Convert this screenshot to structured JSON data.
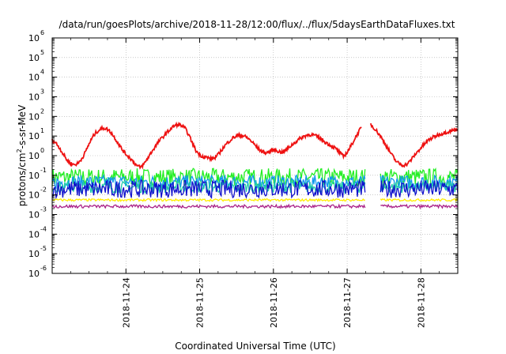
{
  "chart_data": {
    "type": "line",
    "title": "/data/run/goesPlots/archive/2018-11-28/12:00/flux/../flux/5daysEarthDataFluxes.txt",
    "xlabel": "Coordinated Universal Time (UTC)",
    "ylabel_base": "protons/cm",
    "ylabel_sup": "2",
    "ylabel_rest": "-s-sr-MeV",
    "yscale": "log",
    "ylim": [
      1e-06,
      1000000
    ],
    "y_ticks": [
      {
        "base": "10",
        "exp": "6"
      },
      {
        "base": "10",
        "exp": "5"
      },
      {
        "base": "10",
        "exp": "4"
      },
      {
        "base": "10",
        "exp": "3"
      },
      {
        "base": "10",
        "exp": "2"
      },
      {
        "base": "10",
        "exp": "1"
      },
      {
        "base": "10",
        "exp": "0"
      },
      {
        "base": "10",
        "exp": "-1"
      },
      {
        "base": "10",
        "exp": "-2"
      },
      {
        "base": "10",
        "exp": "-3"
      },
      {
        "base": "10",
        "exp": "-4"
      },
      {
        "base": "10",
        "exp": "-5"
      },
      {
        "base": "10",
        "exp": "-6"
      }
    ],
    "xlim": [
      "2018-11-23 00:00",
      "2018-11-28 12:00"
    ],
    "x_tick_labels": [
      "2018-11-24",
      "2018-11-25",
      "2018-11-26",
      "2018-11-27",
      "2018-11-28"
    ],
    "grid": true,
    "series": [
      {
        "color": "#ee1111",
        "points": [
          [
            0.0,
            6.0
          ],
          [
            0.05,
            4.5
          ],
          [
            0.1,
            2.5
          ],
          [
            0.15,
            1.2
          ],
          [
            0.2,
            0.6
          ],
          [
            0.25,
            0.4
          ],
          [
            0.3,
            0.35
          ],
          [
            0.35,
            0.4
          ],
          [
            0.4,
            0.7
          ],
          [
            0.45,
            1.5
          ],
          [
            0.5,
            4.0
          ],
          [
            0.55,
            9.0
          ],
          [
            0.6,
            16.0
          ],
          [
            0.65,
            22.0
          ],
          [
            0.7,
            26.0
          ],
          [
            0.75,
            22.0
          ],
          [
            0.8,
            15.0
          ],
          [
            0.85,
            8.0
          ],
          [
            0.9,
            4.0
          ],
          [
            0.95,
            2.0
          ],
          [
            1.0,
            1.2
          ],
          [
            1.05,
            0.8
          ],
          [
            1.1,
            0.5
          ],
          [
            1.15,
            0.3
          ],
          [
            1.2,
            0.25
          ],
          [
            1.25,
            0.4
          ],
          [
            1.3,
            0.8
          ],
          [
            1.35,
            1.6
          ],
          [
            1.4,
            3.0
          ],
          [
            1.45,
            5.5
          ],
          [
            1.5,
            9.0
          ],
          [
            1.55,
            14.0
          ],
          [
            1.6,
            22.0
          ],
          [
            1.65,
            32.0
          ],
          [
            1.7,
            38.0
          ],
          [
            1.75,
            35.0
          ],
          [
            1.8,
            25.0
          ],
          [
            1.85,
            12.0
          ],
          [
            1.9,
            4.5
          ],
          [
            1.95,
            1.8
          ],
          [
            2.0,
            1.1
          ],
          [
            2.05,
            0.9
          ],
          [
            2.1,
            0.8
          ],
          [
            2.15,
            0.7
          ],
          [
            2.2,
            0.75
          ],
          [
            2.25,
            1.1
          ],
          [
            2.3,
            2.0
          ],
          [
            2.35,
            3.5
          ],
          [
            2.4,
            5.5
          ],
          [
            2.45,
            8.0
          ],
          [
            2.5,
            10.0
          ],
          [
            2.55,
            11.0
          ],
          [
            2.6,
            10.0
          ],
          [
            2.65,
            8.0
          ],
          [
            2.7,
            5.5
          ],
          [
            2.75,
            3.5
          ],
          [
            2.8,
            2.2
          ],
          [
            2.85,
            1.6
          ],
          [
            2.9,
            1.4
          ],
          [
            2.95,
            1.6
          ],
          [
            3.0,
            2.0
          ],
          [
            3.05,
            1.8
          ],
          [
            3.1,
            1.5
          ],
          [
            3.15,
            1.7
          ],
          [
            3.2,
            2.4
          ],
          [
            3.25,
            3.5
          ],
          [
            3.3,
            5.0
          ],
          [
            3.35,
            7.0
          ],
          [
            3.4,
            9.0
          ],
          [
            3.45,
            11.0
          ],
          [
            3.5,
            12.0
          ],
          [
            3.55,
            11.0
          ],
          [
            3.6,
            9.0
          ],
          [
            3.65,
            7.0
          ],
          [
            3.7,
            5.0
          ],
          [
            3.75,
            3.8
          ],
          [
            3.8,
            3.0
          ],
          [
            3.85,
            2.2
          ],
          [
            3.9,
            1.4
          ],
          [
            3.95,
            0.9
          ],
          [
            4.0,
            1.5
          ],
          [
            4.05,
            3.0
          ],
          [
            4.1,
            7.0
          ],
          [
            4.15,
            15.0
          ],
          [
            4.2,
            30.0
          ],
          [
            4.22,
            null
          ],
          [
            4.3,
            null
          ],
          [
            4.32,
            40.0
          ],
          [
            4.35,
            30.0
          ],
          [
            4.4,
            18.0
          ],
          [
            4.45,
            10.0
          ],
          [
            4.5,
            5.0
          ],
          [
            4.55,
            2.4
          ],
          [
            4.6,
            1.2
          ],
          [
            4.65,
            0.6
          ],
          [
            4.7,
            0.4
          ],
          [
            4.75,
            0.33
          ],
          [
            4.8,
            0.35
          ],
          [
            4.85,
            0.5
          ],
          [
            4.9,
            0.9
          ],
          [
            4.95,
            1.5
          ],
          [
            5.0,
            2.5
          ],
          [
            5.05,
            4.0
          ],
          [
            5.1,
            6.0
          ],
          [
            5.15,
            8.0
          ],
          [
            5.2,
            10.0
          ],
          [
            5.25,
            12.0
          ],
          [
            5.3,
            14.0
          ],
          [
            5.35,
            16.0
          ],
          [
            5.4,
            18.0
          ],
          [
            5.45,
            20.0
          ],
          [
            5.5,
            22.0
          ]
        ]
      },
      {
        "color": "#22ee22",
        "level": 0.08,
        "spread": 0.45,
        "gap": [
          4.25,
          4.45
        ]
      },
      {
        "color": "#1199ee",
        "level": 0.045,
        "spread": 0.35,
        "gap": [
          4.25,
          4.45
        ]
      },
      {
        "color": "#22ccaa",
        "level": 0.025,
        "spread": 0.3,
        "gap": [
          4.25,
          4.45
        ]
      },
      {
        "color": "#1111cc",
        "level": 0.02,
        "spread": 0.45,
        "gap": [
          4.25,
          4.45
        ]
      },
      {
        "color": "#ffee00",
        "level": 0.0055,
        "spread": 0.06,
        "gap": [
          4.25,
          4.45
        ]
      },
      {
        "color": "#aa2288",
        "level": 0.0026,
        "spread": 0.08,
        "gap": [
          4.25,
          4.45
        ]
      }
    ]
  }
}
